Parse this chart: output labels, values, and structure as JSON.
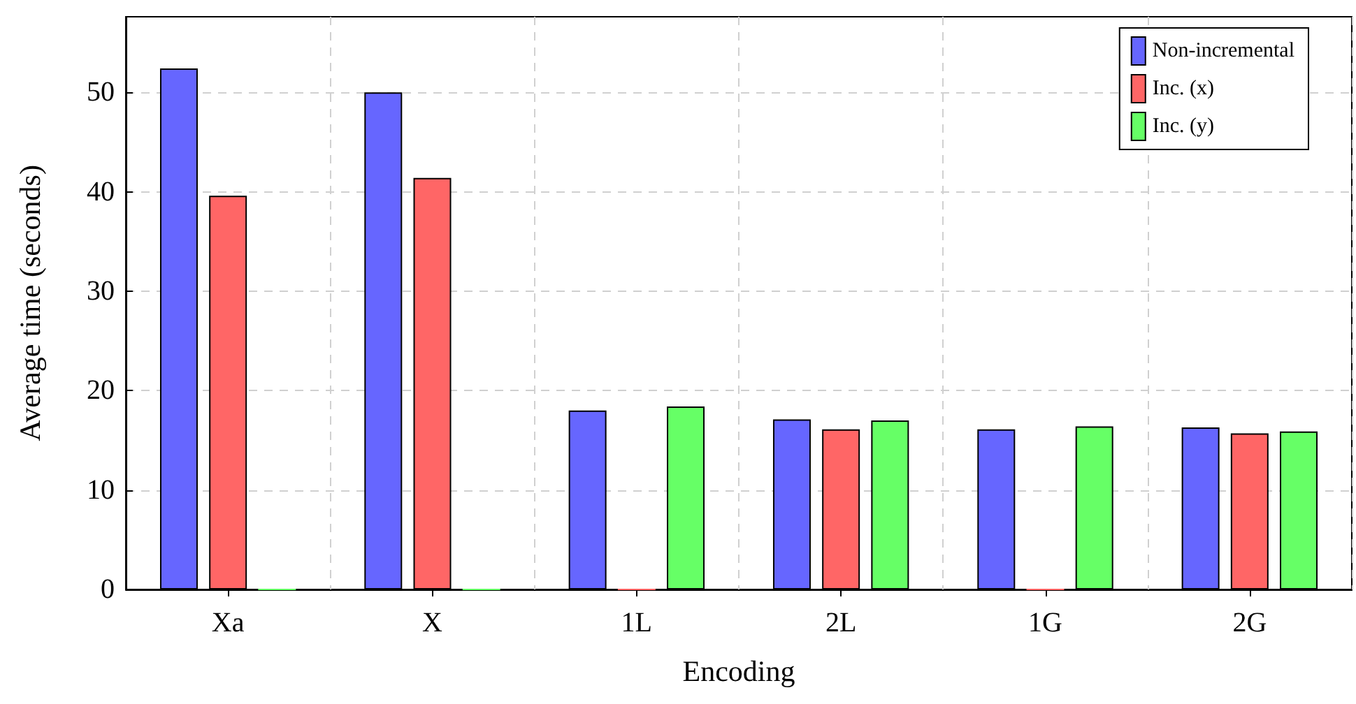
{
  "chart_data": {
    "type": "bar",
    "xlabel": "Encoding",
    "ylabel": "Average time (seconds)",
    "categories": [
      "Xa",
      "X",
      "1L",
      "2L",
      "1G",
      "2G"
    ],
    "series": [
      {
        "name": "Non-incremental",
        "color": "#6666ff",
        "values": [
          52.4,
          50.0,
          18.0,
          17.1,
          16.1,
          16.3
        ]
      },
      {
        "name": "Inc. (x)",
        "color": "#ff6666",
        "values": [
          39.6,
          41.4,
          0,
          16.1,
          0,
          15.7
        ]
      },
      {
        "name": "Inc. (y)",
        "color": "#66ff66",
        "values": [
          0,
          0,
          18.4,
          17.0,
          16.4,
          15.9
        ]
      }
    ],
    "ylim": [
      0,
      57.6
    ],
    "yticks": [
      0,
      10,
      20,
      30,
      40,
      50
    ],
    "grid": true,
    "legend": "top right"
  }
}
